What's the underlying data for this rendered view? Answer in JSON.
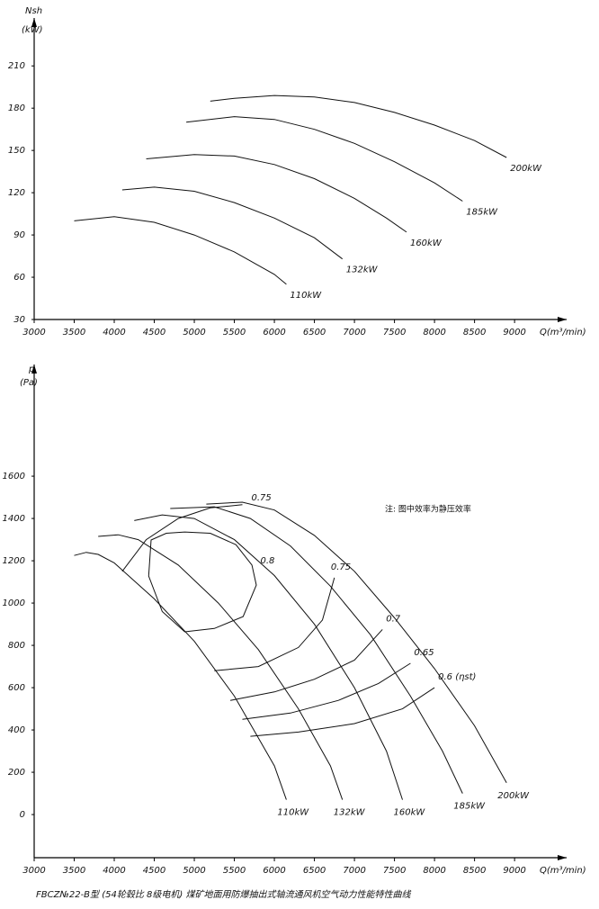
{
  "chart_data": [
    {
      "type": "line",
      "y_label": "Nsh",
      "y_unit": "(kW)",
      "x_label": "Q(m³/min)",
      "xlim": [
        3000,
        9650
      ],
      "ylim": [
        30,
        244
      ],
      "xticks": [
        3000,
        3500,
        4000,
        4500,
        5000,
        5500,
        6000,
        6500,
        7000,
        7500,
        8000,
        8500,
        9000
      ],
      "yticks": [
        30,
        60,
        90,
        120,
        150,
        180,
        210
      ],
      "series": [
        {
          "name": "110kW",
          "x": [
            3500,
            4000,
            4500,
            5000,
            5500,
            6000,
            6150
          ],
          "values": [
            100,
            103,
            99,
            90,
            78,
            62,
            55
          ]
        },
        {
          "name": "132kW",
          "x": [
            4100,
            4500,
            5000,
            5500,
            6000,
            6500,
            6850
          ],
          "values": [
            122,
            124,
            121,
            113,
            102,
            88,
            73
          ]
        },
        {
          "name": "160kW",
          "x": [
            4400,
            5000,
            5500,
            6000,
            6500,
            7000,
            7400,
            7650
          ],
          "values": [
            144,
            147,
            146,
            140,
            130,
            116,
            102,
            92
          ]
        },
        {
          "name": "185kW",
          "x": [
            4900,
            5500,
            6000,
            6500,
            7000,
            7500,
            8000,
            8350
          ],
          "values": [
            170,
            174,
            172,
            165,
            155,
            142,
            127,
            114
          ]
        },
        {
          "name": "200kW",
          "x": [
            5200,
            5500,
            6000,
            6500,
            7000,
            7500,
            8000,
            8500,
            8900
          ],
          "values": [
            185,
            187,
            189,
            188,
            184,
            177,
            168,
            157,
            145
          ]
        }
      ]
    },
    {
      "type": "line",
      "y_label": "p",
      "y_unit": "(Pa)",
      "x_label": "Q(m³/min)",
      "note": "注: 图中效率为静压效率",
      "caption": "FBCZ№22-B型 (54轮毂比 8级电机) 煤矿地面用防爆抽出式轴流通风机空气动力性能特性曲线",
      "xlim": [
        3000,
        9650
      ],
      "ylim": [
        -204,
        2128
      ],
      "xticks": [
        3000,
        3500,
        4000,
        4500,
        5000,
        5500,
        6000,
        6500,
        7000,
        7500,
        8000,
        8500,
        9000
      ],
      "yticks": [
        0,
        200,
        400,
        600,
        800,
        1000,
        1200,
        1400,
        1600
      ],
      "series": [
        {
          "name": "110kW",
          "x": [
            3500,
            3650,
            3800,
            4000,
            4500,
            5000,
            5500,
            6000,
            6150
          ],
          "values": [
            1225,
            1240,
            1230,
            1190,
            1020,
            820,
            560,
            230,
            70
          ]
        },
        {
          "name": "132kW",
          "x": [
            3800,
            4050,
            4300,
            4800,
            5300,
            5800,
            6300,
            6700,
            6850
          ],
          "values": [
            1315,
            1323,
            1300,
            1180,
            1000,
            780,
            500,
            230,
            70
          ]
        },
        {
          "name": "160kW",
          "x": [
            4250,
            4600,
            5000,
            5500,
            6000,
            6500,
            7000,
            7400,
            7600
          ],
          "values": [
            1390,
            1417,
            1400,
            1300,
            1130,
            900,
            600,
            300,
            70
          ]
        },
        {
          "name": "185kW",
          "x": [
            4700,
            5250,
            5700,
            6200,
            6700,
            7200,
            7700,
            8100,
            8350
          ],
          "values": [
            1447,
            1455,
            1400,
            1270,
            1080,
            850,
            560,
            300,
            100
          ]
        },
        {
          "name": "200kW",
          "x": [
            5150,
            5600,
            6000,
            6500,
            7000,
            7500,
            8000,
            8500,
            8900
          ],
          "values": [
            1468,
            1477,
            1440,
            1320,
            1150,
            930,
            690,
            420,
            150
          ]
        },
        {
          "name": "0.8",
          "x": [
            4880,
            5200,
            5520,
            5720,
            5775,
            5610,
            5250,
            4880,
            4600,
            4430,
            4460,
            4650,
            4880
          ],
          "values": [
            1336,
            1330,
            1276,
            1180,
            1085,
            936,
            880,
            864,
            960,
            1128,
            1298,
            1330,
            1336
          ]
        },
        {
          "name": "0.75",
          "x": [
            4100,
            4400,
            4800,
            5200,
            5600,
            5650,
            5250,
            5800,
            6300,
            6600,
            6750
          ],
          "values": [
            1150,
            1300,
            1400,
            1450,
            1465,
            null,
            680,
            700,
            790,
            920,
            1120
          ]
        },
        {
          "name": "0.7",
          "x": [
            5450,
            6000,
            6500,
            7000,
            7350
          ],
          "values": [
            540,
            580,
            640,
            730,
            875
          ]
        },
        {
          "name": "0.65",
          "x": [
            5600,
            6200,
            6800,
            7300,
            7700
          ],
          "values": [
            450,
            480,
            540,
            620,
            715
          ]
        },
        {
          "name": "0.6 (ηst)",
          "x": [
            5700,
            6300,
            7000,
            7600,
            8000
          ],
          "values": [
            370,
            390,
            430,
            500,
            600
          ]
        }
      ]
    }
  ]
}
